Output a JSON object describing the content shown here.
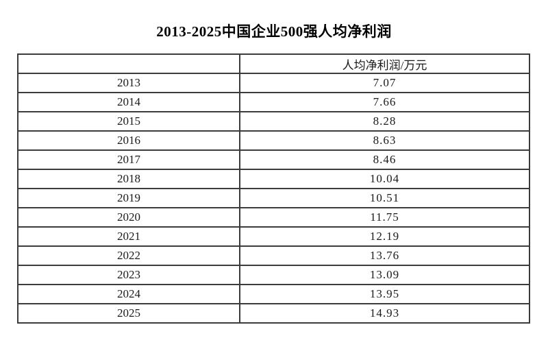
{
  "page": {
    "title": "2013-2025中国企业500强人均净利润"
  },
  "table": {
    "header": {
      "year_col": "",
      "value_col": "人均净利润/万元"
    },
    "rows": [
      {
        "year": "2013",
        "value": "7.07"
      },
      {
        "year": "2014",
        "value": "7.66"
      },
      {
        "year": "2015",
        "value": "8.28"
      },
      {
        "year": "2016",
        "value": "8.63"
      },
      {
        "year": "2017",
        "value": "8.46"
      },
      {
        "year": "2018",
        "value": "10.04"
      },
      {
        "year": "2019",
        "value": "10.51"
      },
      {
        "year": "2020",
        "value": "11.75"
      },
      {
        "year": "2021",
        "value": "12.19"
      },
      {
        "year": "2022",
        "value": "13.76"
      },
      {
        "year": "2023",
        "value": "13.09"
      },
      {
        "year": "2024",
        "value": "13.95"
      },
      {
        "year": "2025",
        "value": "14.93"
      }
    ]
  },
  "chart_data": {
    "type": "table",
    "title": "2013-2025中国企业500强人均净利润",
    "columns": [
      "",
      "人均净利润/万元"
    ],
    "categories": [
      "2013",
      "2014",
      "2015",
      "2016",
      "2017",
      "2018",
      "2019",
      "2020",
      "2021",
      "2022",
      "2023",
      "2024",
      "2025"
    ],
    "values": [
      7.07,
      7.66,
      8.28,
      8.63,
      8.46,
      10.04,
      10.51,
      11.75,
      12.19,
      13.76,
      13.09,
      13.95,
      14.93
    ],
    "unit": "万元",
    "border_color": "#3b3b3b",
    "text_color": "#1a1a1a",
    "background_color": "#ffffff"
  }
}
